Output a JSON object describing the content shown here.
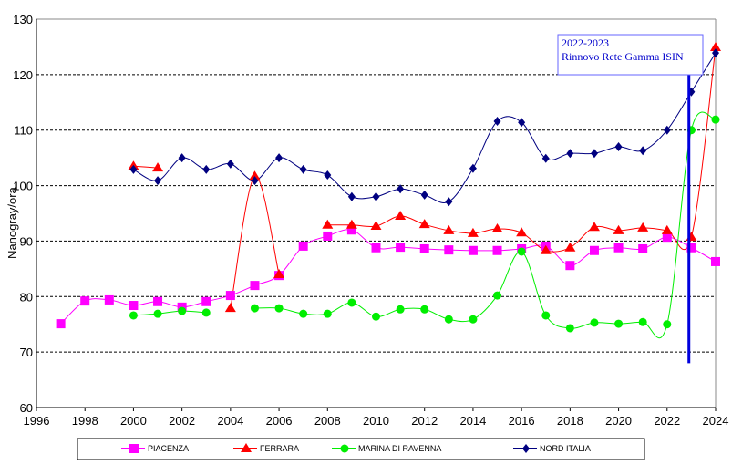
{
  "chart_data": {
    "type": "line",
    "ylabel": "Nanogray/ora",
    "xlim": [
      1996,
      2024
    ],
    "ylim": [
      60,
      130
    ],
    "xticks": [
      "1996",
      "1998",
      "2000",
      "2002",
      "2004",
      "2006",
      "2008",
      "2010",
      "2012",
      "2014",
      "2016",
      "2018",
      "2020",
      "2022",
      "2024"
    ],
    "yticks": [
      "60",
      "70",
      "80",
      "90",
      "100",
      "110",
      "120",
      "130"
    ],
    "annotation": {
      "line1": "2022-2023",
      "line2": "Rinnovo Rete Gamma ISIN",
      "x": 2022.9,
      "y_from": 68,
      "y_to": 120
    },
    "legend_position": "bottom",
    "series": [
      {
        "name": "PIACENZA",
        "color": "#ff00ff",
        "marker": "square",
        "x": [
          1997,
          1998,
          1999,
          2000,
          2001,
          2002,
          2003,
          2004,
          2005,
          2006,
          2007,
          2008,
          2009,
          2010,
          2011,
          2012,
          2013,
          2014,
          2015,
          2016,
          2017,
          2018,
          2019,
          2020,
          2021,
          2022,
          2023,
          2024
        ],
        "values": [
          75.1,
          79.2,
          79.4,
          78.4,
          79.1,
          78.1,
          79.1,
          80.2,
          82.0,
          83.8,
          89.1,
          90.9,
          92.0,
          88.8,
          88.9,
          88.6,
          88.4,
          88.3,
          88.3,
          88.6,
          89.1,
          85.6,
          88.3,
          88.8,
          88.6,
          90.7,
          88.8,
          86.3
        ]
      },
      {
        "name": "FERRARA",
        "color": "#ff0000",
        "marker": "triangle",
        "x": [
          2000,
          2001,
          null,
          2004,
          2005,
          2006,
          null,
          2008,
          2009,
          2010,
          2011,
          2012,
          2013,
          2014,
          2015,
          2016,
          2017,
          2018,
          2019,
          2020,
          2021,
          2022,
          2023,
          2024
        ],
        "values": [
          103.5,
          103.2,
          null,
          77.9,
          101.7,
          84.0,
          null,
          92.9,
          92.9,
          92.7,
          94.5,
          93.0,
          91.9,
          91.4,
          92.2,
          91.5,
          88.3,
          88.8,
          92.5,
          91.9,
          92.4,
          91.9,
          90.7,
          124.9
        ]
      },
      {
        "name": "MARINA DI RAVENNA",
        "color": "#00ee00",
        "marker": "circle",
        "x": [
          2000,
          2001,
          2002,
          2003,
          null,
          2005,
          2006,
          2007,
          2008,
          2009,
          2010,
          2011,
          2012,
          2013,
          2014,
          2015,
          2016,
          2017,
          2018,
          2019,
          2020,
          2021,
          2022,
          2023,
          2024
        ],
        "values": [
          76.6,
          76.9,
          77.4,
          77.1,
          null,
          77.9,
          77.9,
          76.9,
          76.9,
          78.9,
          76.4,
          77.7,
          77.7,
          75.9,
          75.9,
          80.2,
          88.1,
          76.6,
          74.3,
          75.3,
          75.1,
          75.4,
          75.0,
          110.0,
          111.9
        ]
      },
      {
        "name": "NORD ITALIA",
        "color": "#000080",
        "marker": "diamond",
        "x": [
          2000,
          2001,
          2002,
          2003,
          2004,
          2005,
          2006,
          2007,
          2008,
          2009,
          2010,
          2011,
          2012,
          2013,
          2014,
          2015,
          2016,
          2017,
          2018,
          2019,
          2020,
          2021,
          2022,
          2023,
          2024
        ],
        "values": [
          102.9,
          100.9,
          105.0,
          102.9,
          103.9,
          100.9,
          105.0,
          102.9,
          101.9,
          98.0,
          98.0,
          99.4,
          98.3,
          97.1,
          103.1,
          111.6,
          111.4,
          104.9,
          105.8,
          105.8,
          107.0,
          106.3,
          110.0,
          116.9,
          123.9
        ]
      }
    ]
  }
}
